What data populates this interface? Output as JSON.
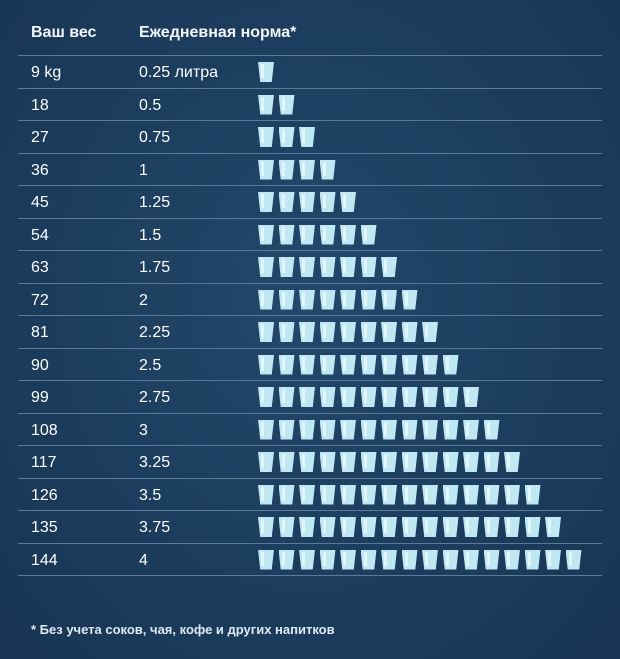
{
  "header": {
    "weight_label": "Ваш вес",
    "norm_label": "Ежедневная норма*"
  },
  "footnote": "* Без учета соков, чая, кофе и других напитков",
  "colors": {
    "background": "#1d3f5f",
    "cup": "#bfe8f2",
    "divider": "#5b7a98"
  },
  "chart_data": {
    "type": "table",
    "columns": [
      "Ваш вес",
      "Ежедневная норма*"
    ],
    "rows": [
      {
        "weight": "9 kg",
        "litres": "0.25 литра",
        "cups": 1
      },
      {
        "weight": "18",
        "litres": "0.5",
        "cups": 2
      },
      {
        "weight": "27",
        "litres": "0.75",
        "cups": 3
      },
      {
        "weight": "36",
        "litres": "1",
        "cups": 4
      },
      {
        "weight": "45",
        "litres": "1.25",
        "cups": 5
      },
      {
        "weight": "54",
        "litres": "1.5",
        "cups": 6
      },
      {
        "weight": "63",
        "litres": "1.75",
        "cups": 7
      },
      {
        "weight": "72",
        "litres": "2",
        "cups": 8
      },
      {
        "weight": "81",
        "litres": "2.25",
        "cups": 9
      },
      {
        "weight": "90",
        "litres": "2.5",
        "cups": 10
      },
      {
        "weight": "99",
        "litres": "2.75",
        "cups": 11
      },
      {
        "weight": "108",
        "litres": "3",
        "cups": 12
      },
      {
        "weight": "117",
        "litres": "3.25",
        "cups": 13
      },
      {
        "weight": "126",
        "litres": "3.5",
        "cups": 14
      },
      {
        "weight": "135",
        "litres": "3.75",
        "cups": 15
      },
      {
        "weight": "144",
        "litres": "4",
        "cups": 16
      }
    ],
    "cup_icon": "water-glass-icon"
  }
}
